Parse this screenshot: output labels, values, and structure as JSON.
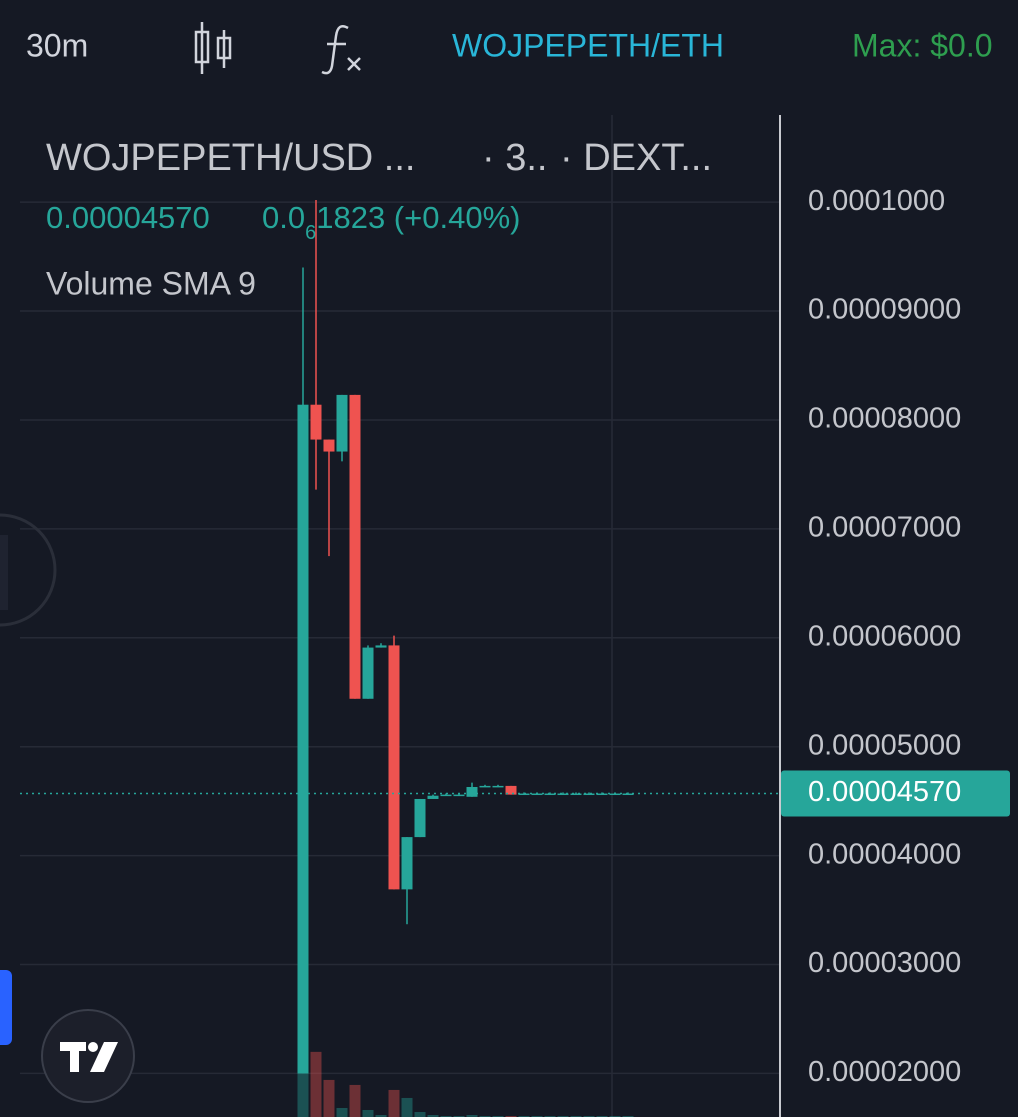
{
  "toolbar": {
    "interval": "30m",
    "symbol": "WOJPEPETH/ETH",
    "max": "Max: $0.0"
  },
  "chart_data": {
    "type": "candlestick",
    "title": "WOJPEPETH/USD ...",
    "interval": "· 3..",
    "exchange": "· DEXT...",
    "price": "0.00004570",
    "change": {
      "lead": "0.0",
      "subscript": "6",
      "rest": "1823 (+0.40%)"
    },
    "indicator": "Volume SMA 9",
    "up_color": "#26a69a",
    "down_color": "#ef5350",
    "open": [
      2e-05,
      8.14e-05,
      7.82e-05,
      7.71e-05,
      8.23e-05,
      5.44e-05,
      5.91e-05,
      5.93e-05,
      3.69e-05,
      4.17e-05,
      4.52e-05,
      4.55e-05,
      4.55e-05,
      4.54e-05,
      4.63e-05,
      4.64e-05,
      4.64e-05,
      4.56e-05,
      4.56e-05,
      4.56e-05,
      4.56e-05,
      4.56e-05,
      4.56e-05,
      4.56e-05,
      4.56e-05,
      4.56e-05
    ],
    "high": [
      9.4e-05,
      0.0001002,
      7.82e-05,
      8.23e-05,
      8.23e-05,
      5.93e-05,
      5.95e-05,
      6.02e-05,
      4.17e-05,
      4.52e-05,
      4.56e-05,
      4.57e-05,
      4.57e-05,
      4.67e-05,
      4.65e-05,
      4.65e-05,
      4.64e-05,
      4.58e-05,
      4.58e-05,
      4.58e-05,
      4.58e-05,
      4.58e-05,
      4.58e-05,
      4.58e-05,
      4.58e-05,
      4.58e-05
    ],
    "low": [
      2e-05,
      7.36e-05,
      6.75e-05,
      7.62e-05,
      5.44e-05,
      5.44e-05,
      5.91e-05,
      3.69e-05,
      3.37e-05,
      4.17e-05,
      4.52e-05,
      4.55e-05,
      4.55e-05,
      4.54e-05,
      4.63e-05,
      4.63e-05,
      4.56e-05,
      4.56e-05,
      4.56e-05,
      4.56e-05,
      4.56e-05,
      4.56e-05,
      4.56e-05,
      4.56e-05,
      4.56e-05,
      4.56e-05
    ],
    "close": [
      8.14e-05,
      7.82e-05,
      7.71e-05,
      8.23e-05,
      5.44e-05,
      5.91e-05,
      5.93e-05,
      3.69e-05,
      4.17e-05,
      4.52e-05,
      4.55e-05,
      4.56e-05,
      4.56e-05,
      4.63e-05,
      4.64e-05,
      4.64e-05,
      4.56e-05,
      4.57e-05,
      4.57e-05,
      4.57e-05,
      4.57e-05,
      4.57e-05,
      4.57e-05,
      4.57e-05,
      4.57e-05,
      4.57e-05
    ],
    "volume": [
      6.7,
      6.5,
      3.7,
      0.9,
      3.2,
      0.7,
      0.2,
      2.7,
      1.9,
      0.5,
      0.2,
      0.1,
      0.1,
      0.2,
      0.1,
      0.1,
      0.1,
      0.1,
      0.1,
      0.1,
      0.1,
      0.1,
      0.1,
      0.1,
      0.1,
      0.1
    ],
    "y2lim": [
      0,
      100
    ],
    "ylim": [
      1.6e-05,
      0.000108
    ],
    "yticks": [
      {
        "value": 0.0001,
        "label": "0.0001000"
      },
      {
        "value": 9e-05,
        "label": "0.00009000"
      },
      {
        "value": 8e-05,
        "label": "0.00008000"
      },
      {
        "value": 7e-05,
        "label": "0.00007000"
      },
      {
        "value": 6e-05,
        "label": "0.00006000"
      },
      {
        "value": 5e-05,
        "label": "0.00005000"
      },
      {
        "value": 4e-05,
        "label": "0.00004000"
      },
      {
        "value": 3e-05,
        "label": "0.00003000"
      },
      {
        "value": 2e-05,
        "label": "0.00002000"
      }
    ],
    "last_price": {
      "value": 4.57e-05,
      "label": "0.00004570"
    },
    "grid": true
  }
}
